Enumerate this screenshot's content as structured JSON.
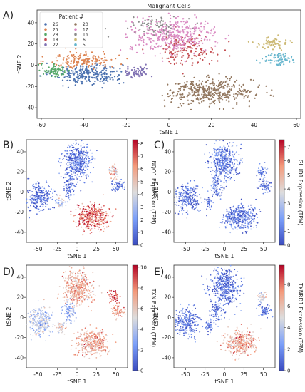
{
  "figure": {
    "panels": [
      {
        "key": "A",
        "letter": "A)"
      },
      {
        "key": "B",
        "letter": "B)"
      },
      {
        "key": "C",
        "letter": "C)"
      },
      {
        "key": "D",
        "letter": "D)"
      },
      {
        "key": "E",
        "letter": "E)"
      }
    ]
  },
  "chart_data": [
    {
      "panel": "A",
      "type": "scatter",
      "title": "Malignant Cells",
      "xlabel": "tSNE 1",
      "ylabel": "tSNE 2",
      "xlim": [
        -62,
        62
      ],
      "ylim": [
        -50,
        52
      ],
      "xticks": [
        -60,
        -40,
        -20,
        0,
        20,
        40,
        60
      ],
      "yticks": [
        -40,
        -20,
        0,
        20,
        40
      ],
      "legend": {
        "title": "Patient #",
        "placement": "top-left",
        "ncol": 2,
        "entries": [
          "26",
          "25",
          "28",
          "18",
          "22",
          "20",
          "17",
          "16",
          "6",
          "5"
        ]
      },
      "series": [
        {
          "name": "26",
          "color": "#4c72b0",
          "clusters": [
            {
              "cx": -38,
              "cy": -8,
              "sx": 8,
              "sy": 5,
              "n": 260
            }
          ]
        },
        {
          "name": "25",
          "color": "#dd8452",
          "clusters": [
            {
              "cx": -40,
              "cy": 5,
              "sx": 8,
              "sy": 4,
              "n": 150
            }
          ]
        },
        {
          "name": "28",
          "color": "#55a868",
          "clusters": [
            {
              "cx": -54,
              "cy": -5,
              "sx": 4,
              "sy": 3,
              "n": 80
            }
          ]
        },
        {
          "name": "18",
          "color": "#c44e52",
          "clusters": [
            {
              "cx": 8,
              "cy": 15,
              "sx": 7,
              "sy": 7,
              "n": 150
            }
          ]
        },
        {
          "name": "22",
          "color": "#8172b3",
          "clusters": [
            {
              "cx": -15,
              "cy": -7,
              "sx": 3,
              "sy": 3,
              "n": 60
            }
          ]
        },
        {
          "name": "20",
          "color": "#937860",
          "clusters": [
            {
              "cx": 20,
              "cy": -25,
              "sx": 10,
              "sy": 6,
              "n": 380
            }
          ]
        },
        {
          "name": "17",
          "color": "#da8bc3",
          "clusters": [
            {
              "cx": 2,
              "cy": 28,
              "sx": 10,
              "sy": 8,
              "n": 380
            }
          ]
        },
        {
          "name": "16",
          "color": "#8c8c8c",
          "clusters": [
            {
              "cx": -5,
              "cy": 38,
              "sx": 6,
              "sy": 4,
              "n": 60
            }
          ]
        },
        {
          "name": "6",
          "color": "#ccb974",
          "clusters": [
            {
              "cx": 48,
              "cy": 20,
              "sx": 4,
              "sy": 3,
              "n": 60
            }
          ]
        },
        {
          "name": "5",
          "color": "#64b5cd",
          "clusters": [
            {
              "cx": 52,
              "cy": 6,
              "sx": 4,
              "sy": 3,
              "n": 70
            }
          ]
        }
      ]
    },
    {
      "panel": "B",
      "type": "scatter",
      "xlabel": "tSNE 1",
      "ylabel": "tSNE 2",
      "colorbar_label": "NQO1 Expression (TPM)",
      "colorbar_range": [
        0,
        8.3
      ],
      "colorbar_ticks": [
        0,
        1,
        2,
        3,
        4,
        5,
        6,
        7,
        8
      ],
      "colormap": "coolwarm",
      "xlim": [
        -65,
        65
      ],
      "ylim": [
        -50,
        52
      ],
      "xticks": [
        -50,
        -25,
        0,
        25,
        50
      ],
      "yticks": [
        -40,
        -20,
        0,
        20,
        40
      ],
      "clusters": [
        {
          "cx": 0,
          "cy": 30,
          "sx": 9,
          "sy": 9,
          "n": 420,
          "value": 1.0
        },
        {
          "cx": -10,
          "cy": 5,
          "sx": 4,
          "sy": 5,
          "n": 80,
          "value": 1.2
        },
        {
          "cx": -48,
          "cy": -5,
          "sx": 8,
          "sy": 7,
          "n": 260,
          "value": 0.9
        },
        {
          "cx": -20,
          "cy": -10,
          "sx": 3,
          "sy": 3,
          "n": 40,
          "value": 3.5
        },
        {
          "cx": 20,
          "cy": -25,
          "sx": 10,
          "sy": 6,
          "n": 380,
          "value": 6.8
        },
        {
          "cx": 48,
          "cy": 20,
          "sx": 3,
          "sy": 3,
          "n": 50,
          "value": 5.2
        },
        {
          "cx": 52,
          "cy": 6,
          "sx": 4,
          "sy": 3,
          "n": 60,
          "value": 1.0
        }
      ]
    },
    {
      "panel": "C",
      "type": "scatter",
      "xlabel": "tSNE 1",
      "ylabel": "tSNE 2",
      "colorbar_label": "GLUD1 Expression (TPM)",
      "colorbar_range": [
        0,
        7.5
      ],
      "colorbar_ticks": [
        0,
        1,
        2,
        3,
        4,
        5,
        6,
        7
      ],
      "colormap": "coolwarm",
      "xlim": [
        -65,
        65
      ],
      "ylim": [
        -50,
        52
      ],
      "xticks": [
        -50,
        -25,
        0,
        25,
        50
      ],
      "yticks": [
        -40,
        -20,
        0,
        20,
        40
      ],
      "clusters": [
        {
          "cx": 0,
          "cy": 30,
          "sx": 9,
          "sy": 9,
          "n": 420,
          "value": 1.3
        },
        {
          "cx": -10,
          "cy": 5,
          "sx": 4,
          "sy": 5,
          "n": 80,
          "value": 1.0
        },
        {
          "cx": -48,
          "cy": -5,
          "sx": 8,
          "sy": 7,
          "n": 260,
          "value": 1.0
        },
        {
          "cx": -20,
          "cy": -10,
          "sx": 3,
          "sy": 3,
          "n": 40,
          "value": 0.8
        },
        {
          "cx": 20,
          "cy": -25,
          "sx": 10,
          "sy": 6,
          "n": 380,
          "value": 0.9
        },
        {
          "cx": 48,
          "cy": 20,
          "sx": 3,
          "sy": 3,
          "n": 50,
          "value": 1.2
        },
        {
          "cx": 52,
          "cy": 6,
          "sx": 4,
          "sy": 3,
          "n": 60,
          "value": 0.9
        }
      ]
    },
    {
      "panel": "D",
      "type": "scatter",
      "xlabel": "tSNE 1",
      "ylabel": "tSNE 2",
      "colorbar_label": "TXN Expression (TPM)",
      "colorbar_range": [
        0,
        10.2
      ],
      "colorbar_ticks": [
        0,
        2,
        4,
        6,
        8,
        10
      ],
      "colormap": "coolwarm",
      "xlim": [
        -65,
        65
      ],
      "ylim": [
        -50,
        52
      ],
      "xticks": [
        -50,
        -25,
        0,
        25,
        50
      ],
      "yticks": [
        -40,
        -20,
        0,
        20,
        40
      ],
      "clusters": [
        {
          "cx": 0,
          "cy": 30,
          "sx": 9,
          "sy": 9,
          "n": 420,
          "value": 6.8
        },
        {
          "cx": -10,
          "cy": 5,
          "sx": 4,
          "sy": 5,
          "n": 80,
          "value": 3.0
        },
        {
          "cx": -48,
          "cy": -5,
          "sx": 8,
          "sy": 7,
          "n": 260,
          "value": 4.0
        },
        {
          "cx": -20,
          "cy": -10,
          "sx": 3,
          "sy": 3,
          "n": 40,
          "value": 5.5
        },
        {
          "cx": 20,
          "cy": -25,
          "sx": 10,
          "sy": 6,
          "n": 380,
          "value": 7.0
        },
        {
          "cx": 48,
          "cy": 20,
          "sx": 3,
          "sy": 3,
          "n": 50,
          "value": 9.0
        },
        {
          "cx": 52,
          "cy": 6,
          "sx": 4,
          "sy": 3,
          "n": 60,
          "value": 7.5
        }
      ]
    },
    {
      "panel": "E",
      "type": "scatter",
      "xlabel": "tSNE 1",
      "ylabel": "tSNE 2",
      "colorbar_label": "TXNRD1 Expression (TPM)",
      "colorbar_range": [
        0,
        9.8
      ],
      "colorbar_ticks": [
        0,
        2,
        4,
        6,
        8
      ],
      "colormap": "coolwarm",
      "xlim": [
        -65,
        65
      ],
      "ylim": [
        -50,
        52
      ],
      "xticks": [
        -50,
        -25,
        0,
        25,
        50
      ],
      "yticks": [
        -40,
        -20,
        0,
        20,
        40
      ],
      "clusters": [
        {
          "cx": 0,
          "cy": 30,
          "sx": 9,
          "sy": 9,
          "n": 420,
          "value": 0.9
        },
        {
          "cx": -10,
          "cy": 5,
          "sx": 4,
          "sy": 5,
          "n": 80,
          "value": 1.0
        },
        {
          "cx": -48,
          "cy": -5,
          "sx": 8,
          "sy": 7,
          "n": 260,
          "value": 1.2
        },
        {
          "cx": -20,
          "cy": -10,
          "sx": 3,
          "sy": 3,
          "n": 40,
          "value": 1.5
        },
        {
          "cx": 20,
          "cy": -25,
          "sx": 10,
          "sy": 6,
          "n": 380,
          "value": 6.5
        },
        {
          "cx": 48,
          "cy": 20,
          "sx": 3,
          "sy": 3,
          "n": 50,
          "value": 5.0
        },
        {
          "cx": 52,
          "cy": 6,
          "sx": 4,
          "sy": 3,
          "n": 60,
          "value": 1.2
        }
      ]
    }
  ]
}
